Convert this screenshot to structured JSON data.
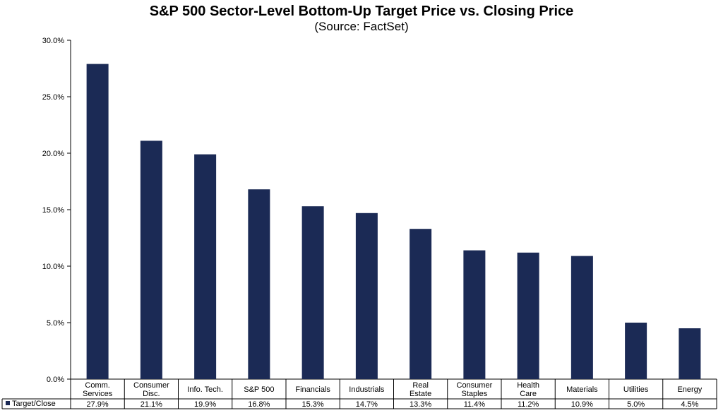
{
  "chart_data": {
    "type": "bar",
    "title": "S&P 500 Sector-Level Bottom-Up Target Price vs. Closing Price",
    "subtitle": "(Source: FactSet)",
    "categories": [
      [
        "Comm.",
        "Services"
      ],
      [
        "Consumer",
        "Disc."
      ],
      [
        "Info. Tech."
      ],
      [
        "S&P 500"
      ],
      [
        "Financials"
      ],
      [
        "Industrials"
      ],
      [
        "Real",
        "Estate"
      ],
      [
        "Consumer",
        "Staples"
      ],
      [
        "Health",
        "Care"
      ],
      [
        "Materials"
      ],
      [
        "Utilities"
      ],
      [
        "Energy"
      ]
    ],
    "series": [
      {
        "name": "Target/Close",
        "values": [
          27.9,
          21.1,
          19.9,
          16.8,
          15.3,
          14.7,
          13.3,
          11.4,
          11.2,
          10.9,
          5.0,
          4.5
        ],
        "labels": [
          "27.9%",
          "21.1%",
          "19.9%",
          "16.8%",
          "15.3%",
          "14.7%",
          "13.3%",
          "11.4%",
          "11.2%",
          "10.9%",
          "5.0%",
          "4.5%"
        ],
        "color": "#1b2a55"
      }
    ],
    "yticks": [
      "0.0%",
      "5.0%",
      "10.0%",
      "15.0%",
      "20.0%",
      "25.0%",
      "30.0%"
    ],
    "ylim": [
      0,
      30
    ],
    "grid": false,
    "legend": "data-table-left"
  }
}
